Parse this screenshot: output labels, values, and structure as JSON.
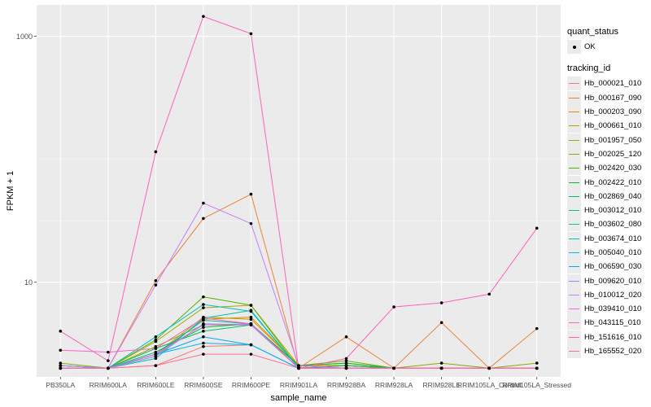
{
  "chart_data": {
    "type": "line",
    "ylabel": "FPKM + 1",
    "xlabel": "sample_name",
    "y_scale": "log10",
    "ylim": [
      1.7,
      1800
    ],
    "y_ticks": [
      {
        "value": 10,
        "label": "10"
      },
      {
        "value": 1000,
        "label": "1000"
      }
    ],
    "categories": [
      "PB350LA",
      "RRIM600LA",
      "RRIM600LE",
      "RRIM600SE",
      "RRIM600PE",
      "RRIM901LA",
      "RRIM928BA",
      "RRIM928LA",
      "RRIM928LE",
      "RRIM105LA_Control",
      "RRIM105LA_Stressed"
    ],
    "series": [
      {
        "name": "Hb_000021_010",
        "color": "#F8766D",
        "values": [
          2.0,
          2.0,
          2.1,
          3.0,
          3.1,
          2.0,
          2.1,
          2.0,
          2.0,
          2.0,
          2.0
        ]
      },
      {
        "name": "Hb_000167_090",
        "color": "#EB8335",
        "values": [
          2.0,
          2.0,
          10.3,
          33.0,
          52.0,
          2.0,
          3.6,
          2.0,
          4.7,
          2.0,
          4.2
        ]
      },
      {
        "name": "Hb_000203_090",
        "color": "#DA8F00",
        "values": [
          2.1,
          2.0,
          2.5,
          5.0,
          5.2,
          2.1,
          2.1,
          2.0,
          2.0,
          2.0,
          2.0
        ]
      },
      {
        "name": "Hb_000661_010",
        "color": "#C49A00",
        "values": [
          2.1,
          2.0,
          2.6,
          5.2,
          5.0,
          2.1,
          2.1,
          2.0,
          2.0,
          2.0,
          2.0
        ]
      },
      {
        "name": "Hb_001957_050",
        "color": "#A9A400",
        "values": [
          2.1,
          2.0,
          3.3,
          6.2,
          6.5,
          2.1,
          2.2,
          2.0,
          2.0,
          2.0,
          2.0
        ]
      },
      {
        "name": "Hb_002025_120",
        "color": "#86AC00",
        "values": [
          2.2,
          2.0,
          3.0,
          4.5,
          4.5,
          2.1,
          2.3,
          2.0,
          2.2,
          2.0,
          2.2
        ]
      },
      {
        "name": "Hb_002420_030",
        "color": "#53B400",
        "values": [
          2.0,
          2.0,
          3.4,
          7.6,
          6.5,
          2.0,
          2.1,
          2.0,
          2.0,
          2.0,
          2.0
        ]
      },
      {
        "name": "Hb_002422_010",
        "color": "#00BA38",
        "values": [
          2.0,
          2.0,
          2.7,
          4.3,
          4.6,
          2.1,
          2.2,
          2.0,
          2.0,
          2.0,
          2.0
        ]
      },
      {
        "name": "Hb_002869_040",
        "color": "#00BE67",
        "values": [
          2.0,
          2.0,
          2.9,
          4.0,
          4.5,
          2.0,
          2.1,
          2.0,
          2.0,
          2.0,
          2.0
        ]
      },
      {
        "name": "Hb_003012_010",
        "color": "#00C08B",
        "values": [
          2.0,
          2.0,
          2.6,
          4.9,
          4.6,
          2.0,
          2.0,
          2.0,
          2.0,
          2.0,
          2.0
        ]
      },
      {
        "name": "Hb_003602_080",
        "color": "#00C1AB",
        "values": [
          2.0,
          2.0,
          2.4,
          5.1,
          5.9,
          2.0,
          2.0,
          2.0,
          2.0,
          2.0,
          2.0
        ]
      },
      {
        "name": "Hb_003674_010",
        "color": "#00BFC4",
        "values": [
          2.0,
          2.0,
          3.6,
          6.6,
          5.8,
          2.0,
          2.0,
          2.0,
          2.0,
          2.0,
          2.0
        ]
      },
      {
        "name": "Hb_005040_010",
        "color": "#00B8E7",
        "values": [
          2.0,
          2.0,
          2.6,
          3.2,
          3.1,
          2.0,
          2.0,
          2.0,
          2.0,
          2.0,
          2.0
        ]
      },
      {
        "name": "Hb_006590_030",
        "color": "#00A9FF",
        "values": [
          2.0,
          2.0,
          2.6,
          3.6,
          3.1,
          2.0,
          2.0,
          2.0,
          2.0,
          2.0,
          2.0
        ]
      },
      {
        "name": "Hb_009620_010",
        "color": "#8494FF",
        "values": [
          2.1,
          2.0,
          2.5,
          4.6,
          4.5,
          2.0,
          2.0,
          2.0,
          2.0,
          2.0,
          2.0
        ]
      },
      {
        "name": "Hb_010012_020",
        "color": "#C77CFF",
        "values": [
          2.0,
          2.0,
          9.5,
          44.0,
          30.0,
          2.1,
          2.0,
          2.0,
          2.0,
          2.0,
          2.0
        ]
      },
      {
        "name": "Hb_039410_010",
        "color": "#ED68ED",
        "values": [
          2.0,
          2.0,
          2.6,
          4.5,
          4.6,
          2.0,
          2.0,
          2.0,
          2.0,
          2.0,
          2.0
        ]
      },
      {
        "name": "Hb_043115_010",
        "color": "#FF61CC",
        "values": [
          2.8,
          2.7,
          2.9,
          5.1,
          4.6,
          2.0,
          2.0,
          2.0,
          2.0,
          2.0,
          2.0
        ]
      },
      {
        "name": "Hb_151616_010",
        "color": "#FF62BC",
        "values": [
          4.0,
          2.3,
          115.0,
          1450.0,
          1050.0,
          2.0,
          2.4,
          6.3,
          6.8,
          8.0,
          27.5
        ]
      },
      {
        "name": "Hb_165552_020",
        "color": "#FF6C91",
        "values": [
          2.0,
          2.0,
          2.1,
          2.6,
          2.6,
          2.0,
          2.0,
          2.0,
          2.0,
          2.0,
          2.0
        ]
      }
    ],
    "legend": {
      "position": "right",
      "quant_title": "quant_status",
      "quant_label": "OK",
      "tracking_title": "tracking_id"
    },
    "grid": true
  }
}
